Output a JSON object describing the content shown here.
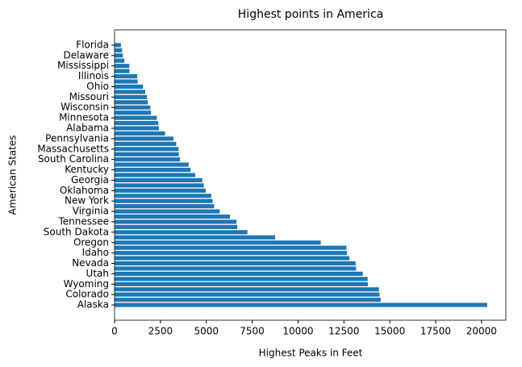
{
  "chart_data": {
    "type": "barh",
    "title": "Highest points in America",
    "x_label": "Highest Peaks in Feet",
    "y_label": "American States",
    "categories": [
      "Alaska",
      null,
      "Colorado",
      null,
      "Wyoming",
      null,
      "Utah",
      null,
      "Nevada",
      null,
      "Idaho",
      null,
      "Oregon",
      null,
      "South Dakota",
      null,
      "Tennessee",
      null,
      "Virginia",
      null,
      "New York",
      null,
      "Oklahoma",
      null,
      "Georgia",
      null,
      "Kentucky",
      null,
      "South Carolina",
      null,
      "Massachusetts",
      null,
      "Pennsylvania",
      null,
      "Alabama",
      null,
      "Minnesota",
      null,
      "Wisconsin",
      null,
      "Missouri",
      null,
      "Ohio",
      null,
      "Illinois",
      null,
      "Mississippi",
      null,
      "Delaware",
      null,
      "Florida"
    ],
    "values": [
      20310,
      14505,
      14440,
      14411,
      13804,
      13796,
      13528,
      13161,
      13140,
      12799,
      12662,
      12633,
      11239,
      8749,
      7242,
      6684,
      6643,
      6288,
      5729,
      5424,
      5344,
      5268,
      4973,
      4863,
      4784,
      4393,
      4145,
      4039,
      3560,
      3506,
      3487,
      3360,
      3213,
      2753,
      2413,
      2380,
      2301,
      1979,
      1951,
      1803,
      1772,
      1670,
      1549,
      1257,
      1235,
      812,
      806,
      535,
      448,
      409,
      345
    ],
    "color": "#1f77b4",
    "xlim": [
      0,
      21326
    ],
    "xticks": [
      0,
      2500,
      5000,
      7500,
      10000,
      12500,
      15000,
      17500,
      20000
    ]
  }
}
